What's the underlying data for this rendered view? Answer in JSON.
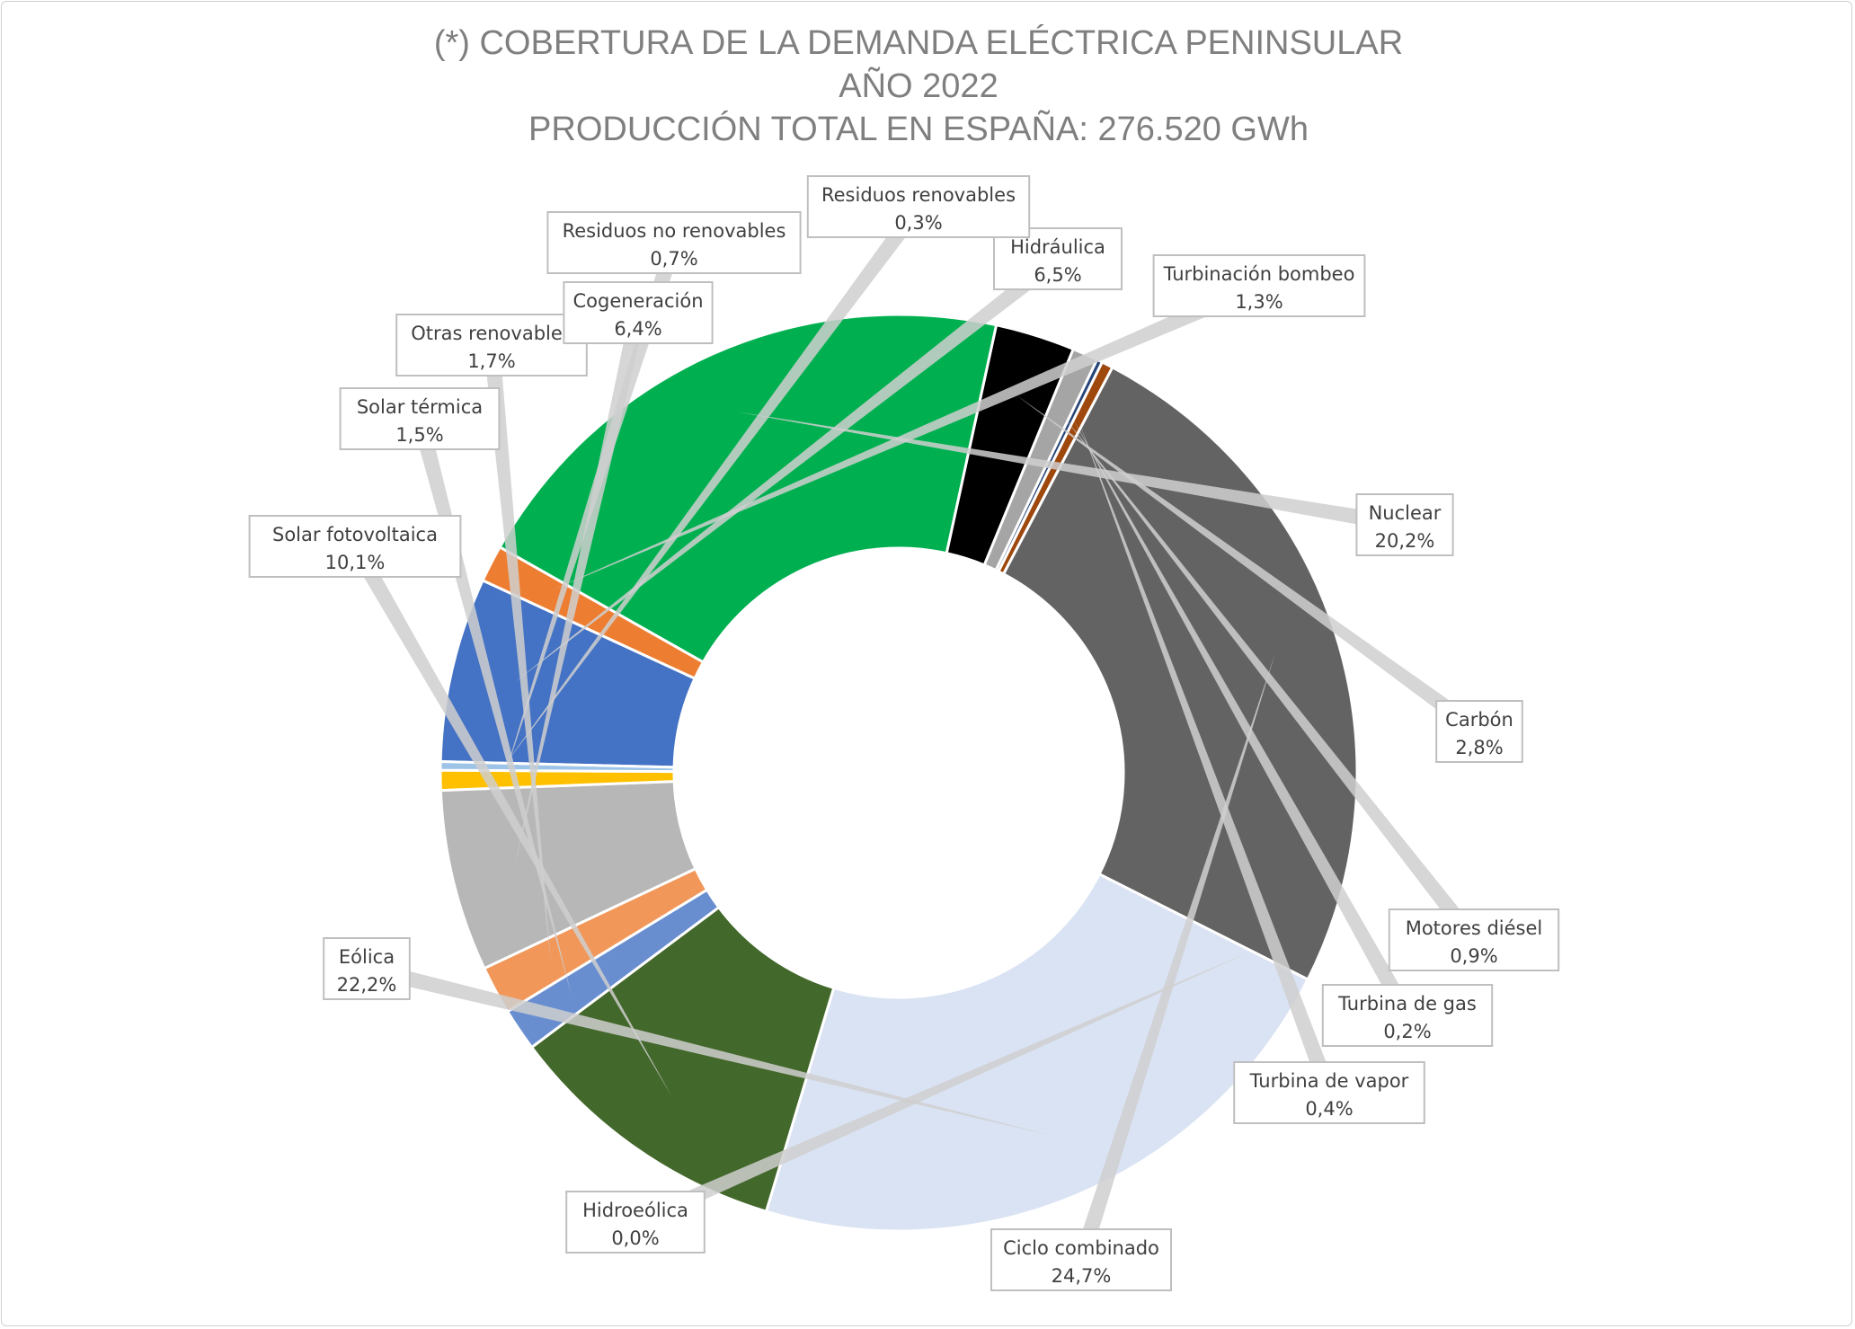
{
  "chart_data": {
    "type": "pie",
    "style": "donut",
    "title_lines": [
      "(*) COBERTURA DE LA DEMANDA ELÉCTRICA PENINSULAR",
      "AÑO 2022",
      "PRODUCCIÓN TOTAL EN ESPAÑA: 276.520 GWh"
    ],
    "slices": [
      {
        "name": "Hidráulica",
        "value": 6.5,
        "label": "6,5%",
        "color": "#4472c4"
      },
      {
        "name": "Turbinación bombeo",
        "value": 1.3,
        "label": "1,3%",
        "color": "#ed7d31"
      },
      {
        "name": "Nuclear",
        "value": 20.2,
        "label": "20,2%",
        "color": "#00b050"
      },
      {
        "name": "Carbón",
        "value": 2.8,
        "label": "2,8%",
        "color": "#000000"
      },
      {
        "name": "Motores diésel",
        "value": 0.9,
        "label": "0,9%",
        "color": "#a5a5a5"
      },
      {
        "name": "Turbina de gas",
        "value": 0.2,
        "label": "0,2%",
        "color": "#264478"
      },
      {
        "name": "Turbina de vapor",
        "value": 0.4,
        "label": "0,4%",
        "color": "#9e480e"
      },
      {
        "name": "Ciclo combinado",
        "value": 24.7,
        "label": "24,7%",
        "color": "#636363"
      },
      {
        "name": "Hidroeólica",
        "value": 0.0,
        "label": "0,0%",
        "color": "#997300"
      },
      {
        "name": "Eólica",
        "value": 22.2,
        "label": "22,2%",
        "color": "#dae3f3"
      },
      {
        "name": "Solar fotovoltaica",
        "value": 10.1,
        "label": "10,1%",
        "color": "#43682b"
      },
      {
        "name": "Solar térmica",
        "value": 1.5,
        "label": "1,5%",
        "color": "#698ed0"
      },
      {
        "name": "Otras renovables",
        "value": 1.7,
        "label": "1,7%",
        "color": "#f1975a"
      },
      {
        "name": "Cogeneración",
        "value": 6.4,
        "label": "6,4%",
        "color": "#b7b7b7"
      },
      {
        "name": "Residuos no renovables",
        "value": 0.7,
        "label": "0,7%",
        "color": "#ffc000"
      },
      {
        "name": "Residuos renovables",
        "value": 0.3,
        "label": "0,3%",
        "color": "#9dc3e6"
      }
    ],
    "legend": "none",
    "data_labels": "callouts"
  }
}
